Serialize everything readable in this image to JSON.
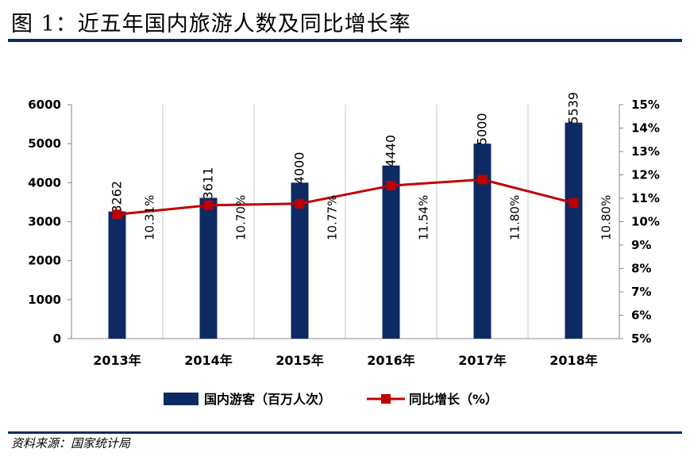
{
  "title": "图 1：近五年国内旅游人数及同比增长率",
  "source": "资料来源：国家统计局",
  "colors": {
    "bar": "#0e2a63",
    "line": "#c00000",
    "rule": "#0e2a63",
    "grid": "#c8c8c8"
  },
  "chart_data": {
    "type": "bar",
    "title": "图 1：近五年国内旅游人数及同比增长率",
    "categories": [
      "2013年",
      "2014年",
      "2015年",
      "2016年",
      "2017年",
      "2018年"
    ],
    "series": [
      {
        "name": "国内游客（百万人次）",
        "type": "bar",
        "axis": "left",
        "values": [
          3262,
          3611,
          4000,
          4440,
          5000,
          5539
        ],
        "labels": [
          "3262",
          "3611",
          "4000",
          "4440",
          "5000",
          "5539"
        ]
      },
      {
        "name": "同比增长（%）",
        "type": "line",
        "axis": "right",
        "values": [
          10.31,
          10.7,
          10.77,
          11.54,
          11.8,
          10.8
        ],
        "labels": [
          "10.31%",
          "10.70%",
          "10.77%",
          "11.54%",
          "11.80%",
          "10.80%"
        ]
      }
    ],
    "y_left": {
      "min": 0,
      "max": 6000,
      "ticks": [
        "0",
        "1000",
        "2000",
        "3000",
        "4000",
        "5000",
        "6000"
      ]
    },
    "y_right": {
      "min": 5,
      "max": 15,
      "ticks": [
        "5%",
        "6%",
        "7%",
        "8%",
        "9%",
        "10%",
        "11%",
        "12%",
        "13%",
        "14%",
        "15%"
      ]
    },
    "grid": "vertical",
    "legend": "bottom-center"
  }
}
